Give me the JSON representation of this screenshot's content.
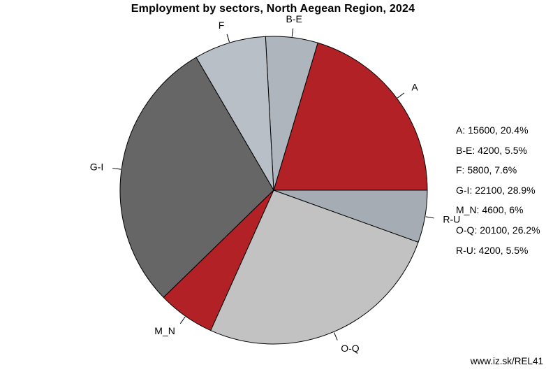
{
  "page": {
    "background": "#ffffff",
    "watermark": "www.iz.sk/REL41"
  },
  "chart_data": {
    "type": "pie",
    "title": "Employment by sectors, North Aegean Region, 2024",
    "start_angle_deg": 0,
    "direction": "counterclockwise",
    "outline_color": "#000000",
    "slices": [
      {
        "label": "A",
        "value": 15600,
        "pct": "20.4",
        "color": "#b22126"
      },
      {
        "label": "B-E",
        "value": 4200,
        "pct": "5.5",
        "color": "#afb5bd"
      },
      {
        "label": "F",
        "value": 5800,
        "pct": "7.6",
        "color": "#b9bfc7"
      },
      {
        "label": "G-I",
        "value": 22100,
        "pct": "28.9",
        "color": "#666666"
      },
      {
        "label": "M_N",
        "value": 4600,
        "pct": "6",
        "color": "#b22126"
      },
      {
        "label": "O-Q",
        "value": 20100,
        "pct": "26.2",
        "color": "#c2c2c2"
      },
      {
        "label": "R-U",
        "value": 4200,
        "pct": "5.5",
        "color": "#a6acb4"
      }
    ],
    "legend": {
      "position": "right",
      "entries": [
        "A: 15600, 20.4%",
        "B-E: 4200, 5.5%",
        "F: 5800, 7.6%",
        "G-I: 22100, 28.9%",
        "M_N: 4600, 6%",
        "O-Q: 20100, 26.2%",
        "R-U: 4200, 5.5%"
      ]
    }
  }
}
